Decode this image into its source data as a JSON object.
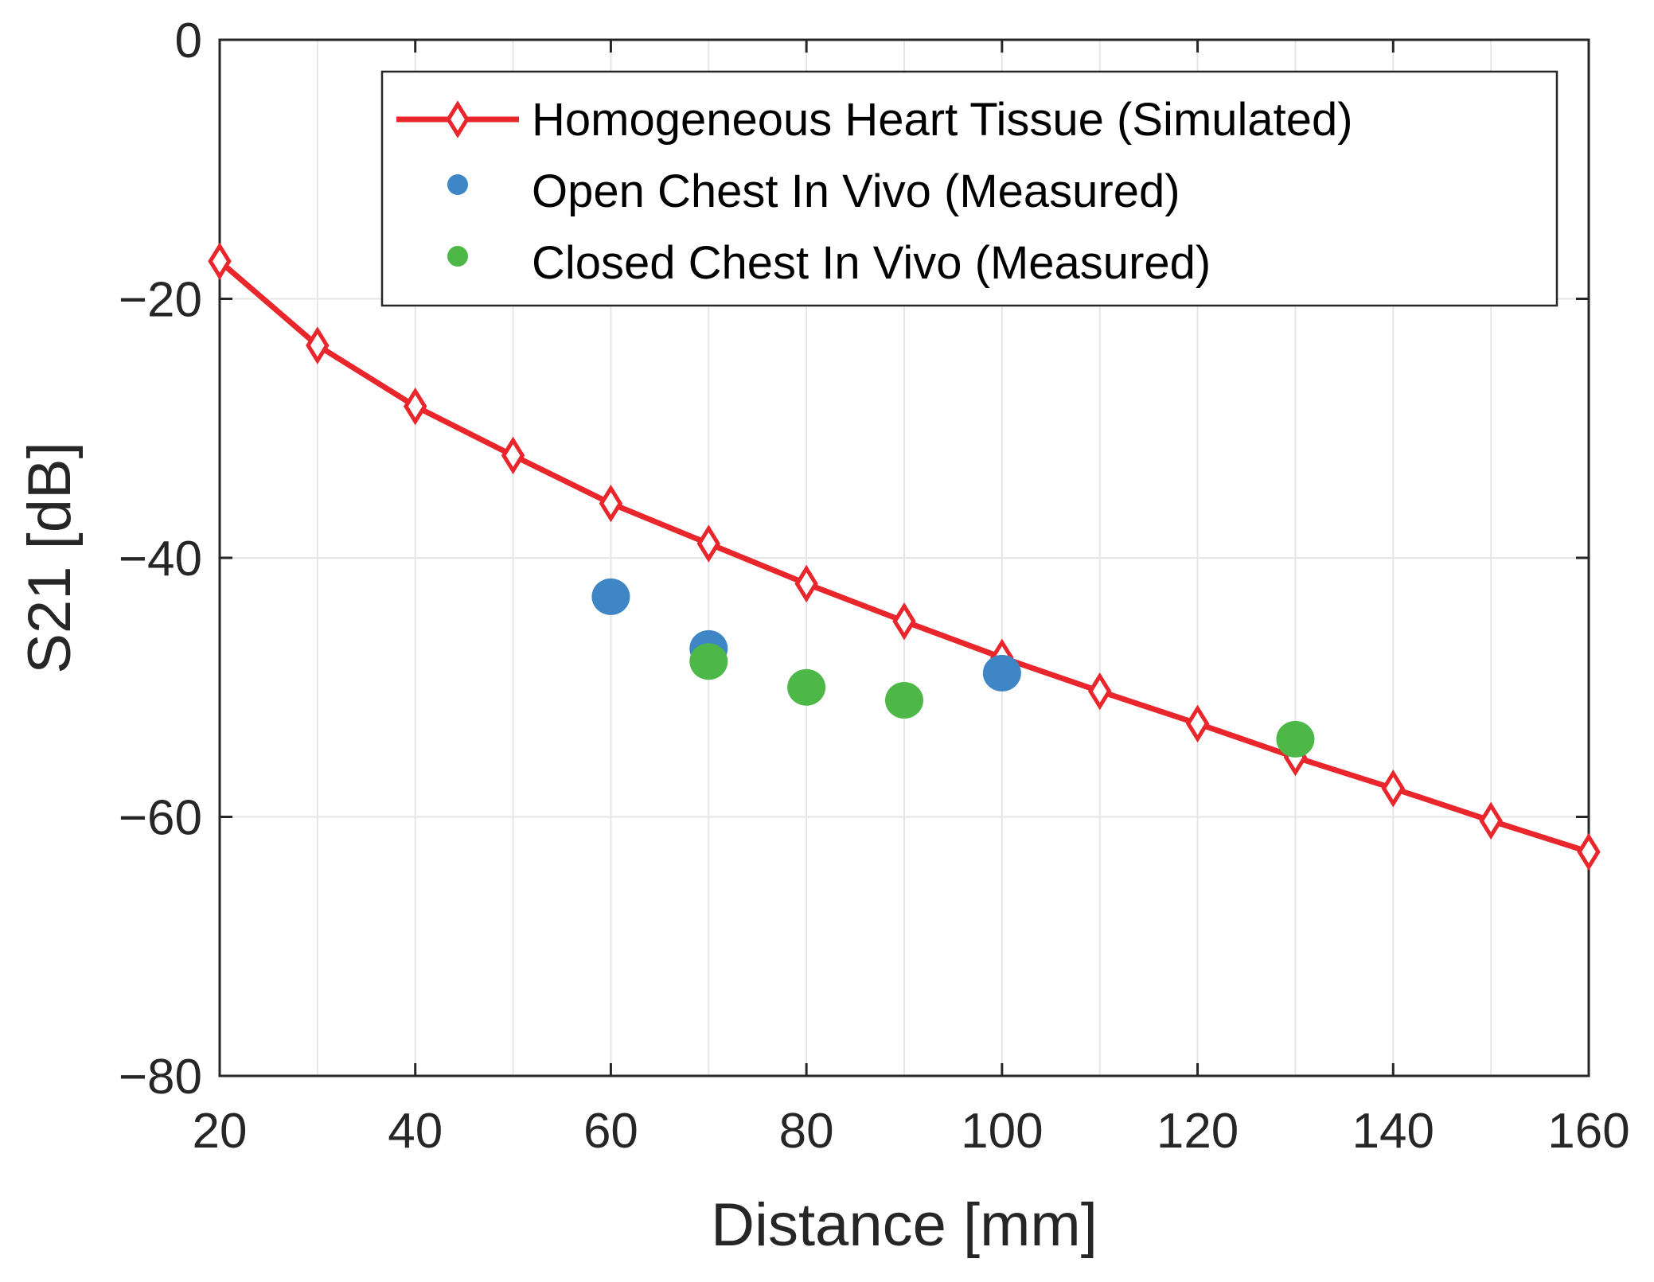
{
  "chart_data": {
    "type": "line",
    "title": "",
    "xlabel": "Distance [mm]",
    "ylabel": "S21 [dB]",
    "xlim": [
      20,
      160
    ],
    "ylim": [
      -80,
      0
    ],
    "xticks": [
      20,
      40,
      60,
      80,
      100,
      120,
      140,
      160
    ],
    "yticks": [
      0,
      -20,
      -40,
      -60,
      -80
    ],
    "xtick_labels": [
      "20",
      "40",
      "60",
      "80",
      "100",
      "120",
      "140",
      "160"
    ],
    "ytick_labels": [
      "0",
      "−20",
      "−40",
      "−60",
      "−80"
    ],
    "grid": true,
    "legend_position": "top-right",
    "series": [
      {
        "name": "Homogeneous Heart Tissue (Simulated)",
        "kind": "line-diamond",
        "color": "#e8262b",
        "x": [
          20,
          30,
          40,
          50,
          60,
          70,
          80,
          90,
          100,
          110,
          120,
          130,
          140,
          150,
          160
        ],
        "y": [
          -17.1,
          -23.6,
          -28.3,
          -32.1,
          -35.8,
          -38.9,
          -42.0,
          -44.9,
          -47.7,
          -50.3,
          -52.8,
          -55.4,
          -57.8,
          -60.3,
          -62.7
        ]
      },
      {
        "name": "Open Chest In Vivo (Measured)",
        "kind": "scatter",
        "color": "#3f86c6",
        "x": [
          60,
          70,
          100
        ],
        "y": [
          -43.0,
          -47.0,
          -48.9
        ]
      },
      {
        "name": "Closed Chest In Vivo (Measured)",
        "kind": "scatter",
        "color": "#4db848",
        "x": [
          70,
          80,
          90,
          130
        ],
        "y": [
          -48.0,
          -50.0,
          -51.0,
          -54.0
        ]
      }
    ]
  }
}
